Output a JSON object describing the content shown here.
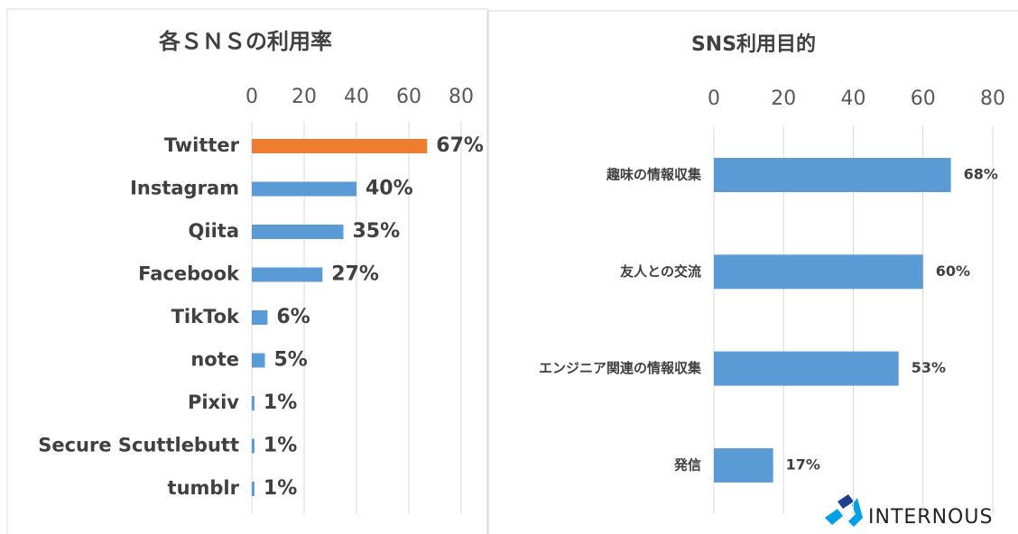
{
  "chart_data": [
    {
      "type": "bar",
      "orientation": "horizontal",
      "title": "各ＳＮＳの利用率",
      "categories": [
        "Twitter",
        "Instagram",
        "Qiita",
        "Facebook",
        "TikTok",
        "note",
        "Pixiv",
        "Secure Scuttlebutt",
        "tumblr"
      ],
      "values": [
        67,
        40,
        35,
        27,
        6,
        5,
        1,
        1,
        1
      ],
      "value_labels": [
        "67%",
        "40%",
        "35%",
        "27%",
        "6%",
        "5%",
        "1%",
        "1%",
        "1%"
      ],
      "colors": [
        "#ed7d31",
        "#5b9bd5",
        "#5b9bd5",
        "#5b9bd5",
        "#5b9bd5",
        "#5b9bd5",
        "#5b9bd5",
        "#5b9bd5",
        "#5b9bd5"
      ],
      "xlim": [
        0,
        80
      ],
      "xticks": [
        0,
        20,
        40,
        60,
        80
      ],
      "grid": true
    },
    {
      "type": "bar",
      "orientation": "horizontal",
      "title": "SNS利用目的",
      "categories": [
        "趣味の情報収集",
        "友人との交流",
        "エンジニア関連の情報収集",
        "発信"
      ],
      "values": [
        68,
        60,
        53,
        17
      ],
      "value_labels": [
        "68%",
        "60%",
        "53%",
        "17%"
      ],
      "colors": [
        "#5b9bd5",
        "#5b9bd5",
        "#5b9bd5",
        "#5b9bd5"
      ],
      "xlim": [
        0,
        80
      ],
      "xticks": [
        0,
        20,
        40,
        60,
        80
      ],
      "grid": true
    }
  ],
  "logo": {
    "text": "INTERNOUS"
  }
}
